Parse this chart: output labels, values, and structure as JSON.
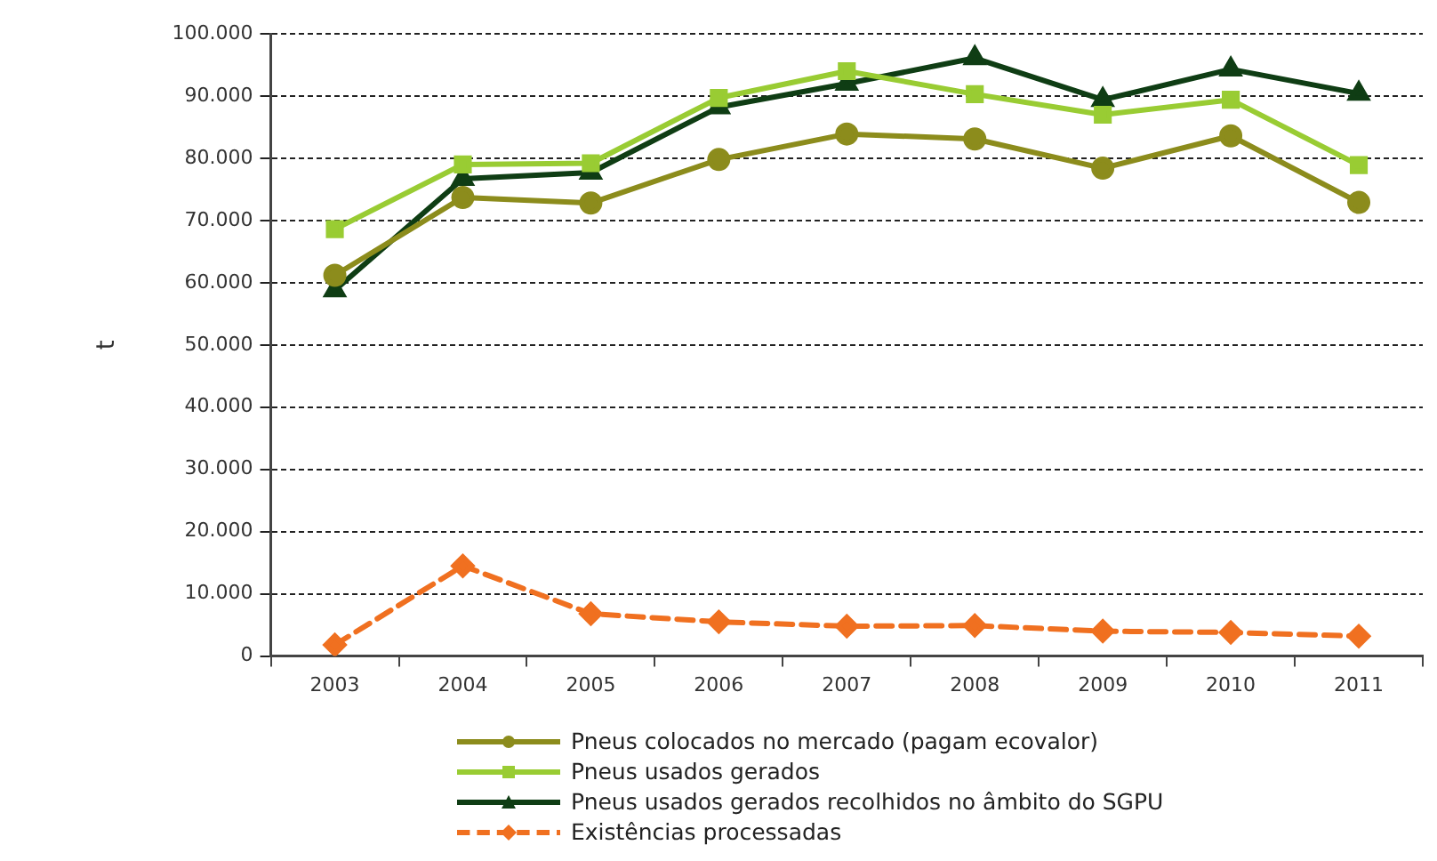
{
  "chart_data": {
    "type": "line",
    "ylabel": "t",
    "categories": [
      "2003",
      "2004",
      "2005",
      "2006",
      "2007",
      "2008",
      "2009",
      "2010",
      "2011"
    ],
    "series": [
      {
        "name": "Pneus colocados no mercado (pagam ecovalor)",
        "color": "#8c8c1c",
        "marker": "circle",
        "line_style": "solid",
        "values": [
          61200,
          73700,
          72800,
          79800,
          83900,
          83100,
          78400,
          83600,
          72900
        ]
      },
      {
        "name": "Pneus usados gerados",
        "color": "#99cc33",
        "marker": "square",
        "line_style": "solid",
        "values": [
          68600,
          79000,
          79200,
          89700,
          94000,
          90300,
          87000,
          89400,
          78900
        ]
      },
      {
        "name": "Pneus usados gerados recolhidos no âmbito do SGPU",
        "color": "#0f3d14",
        "marker": "triangle",
        "line_style": "solid",
        "values": [
          58800,
          76700,
          77700,
          88200,
          92000,
          96100,
          89400,
          94300,
          90400
        ]
      },
      {
        "name": "Existências processadas",
        "color": "#f07020",
        "marker": "diamond",
        "line_style": "dashed",
        "values": [
          1800,
          14500,
          6800,
          5500,
          4800,
          4900,
          4000,
          3800,
          3200
        ]
      }
    ],
    "ylim": [
      0,
      100000
    ],
    "yticks": [
      0,
      {
        "value": 10000,
        "label": "10.000"
      },
      {
        "value": 20000,
        "label": "20.000"
      },
      {
        "value": 30000,
        "label": "30.000"
      },
      {
        "value": 40000,
        "label": "40.000"
      },
      {
        "value": 50000,
        "label": "50.000"
      },
      {
        "value": 60000,
        "label": "60.000"
      },
      {
        "value": 70000,
        "label": "70.000"
      },
      {
        "value": 80000,
        "label": "80.000"
      },
      {
        "value": 90000,
        "label": "90.000"
      },
      {
        "value": 100000,
        "label": "100.000"
      }
    ],
    "grid": "y",
    "legend": "bottom"
  }
}
